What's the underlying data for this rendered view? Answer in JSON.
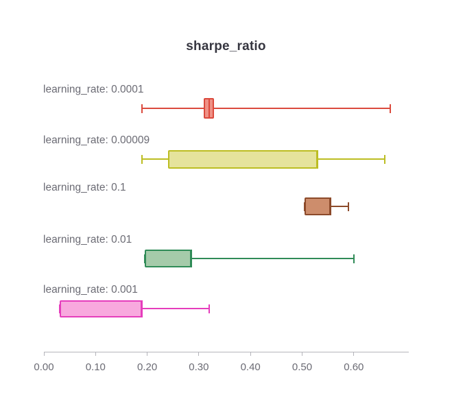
{
  "title": "sharpe_ratio",
  "colors": {
    "axis": "#b4b4ba",
    "label_text": "#6b6b74",
    "title_text": "#363640",
    "background": "#ffffff"
  },
  "chart_data": {
    "type": "box",
    "orientation": "horizontal",
    "title": "sharpe_ratio",
    "xlabel": "",
    "ylabel": "",
    "grid": false,
    "legend": false,
    "xlim": [
      0.0,
      0.705
    ],
    "x_ticks": [
      {
        "value": 0.0,
        "label": "0.00"
      },
      {
        "value": 0.1,
        "label": "0.10"
      },
      {
        "value": 0.2,
        "label": "0.20"
      },
      {
        "value": 0.3,
        "label": "0.30"
      },
      {
        "value": 0.4,
        "label": "0.40"
      },
      {
        "value": 0.5,
        "label": "0.50"
      },
      {
        "value": 0.6,
        "label": "0.60"
      }
    ],
    "series": [
      {
        "label": "learning_rate: 0.0001",
        "whisker_low": 0.19,
        "q1": 0.31,
        "median": 0.32,
        "q3": 0.33,
        "whisker_high": 0.67,
        "stroke": "#db4a3d",
        "fill": "#ef9186"
      },
      {
        "label": "learning_rate: 0.00009",
        "whisker_low": 0.19,
        "q1": 0.24,
        "median": 0.53,
        "q3": 0.53,
        "whisker_high": 0.66,
        "stroke": "#bcbd22",
        "fill": "#e5e39c"
      },
      {
        "label": "learning_rate: 0.1",
        "whisker_low": 0.505,
        "q1": 0.505,
        "median": 0.555,
        "q3": 0.555,
        "whisker_high": 0.59,
        "stroke": "#8c4a2a",
        "fill": "#cd8d6c"
      },
      {
        "label": "learning_rate: 0.01",
        "whisker_low": 0.195,
        "q1": 0.195,
        "median": 0.285,
        "q3": 0.285,
        "whisker_high": 0.6,
        "stroke": "#2f8b57",
        "fill": "#a5cbaa"
      },
      {
        "label": "learning_rate: 0.001",
        "whisker_low": 0.03,
        "q1": 0.03,
        "median": 0.19,
        "q3": 0.19,
        "whisker_high": 0.32,
        "stroke": "#e53dbc",
        "fill": "#f8a9de"
      }
    ]
  }
}
